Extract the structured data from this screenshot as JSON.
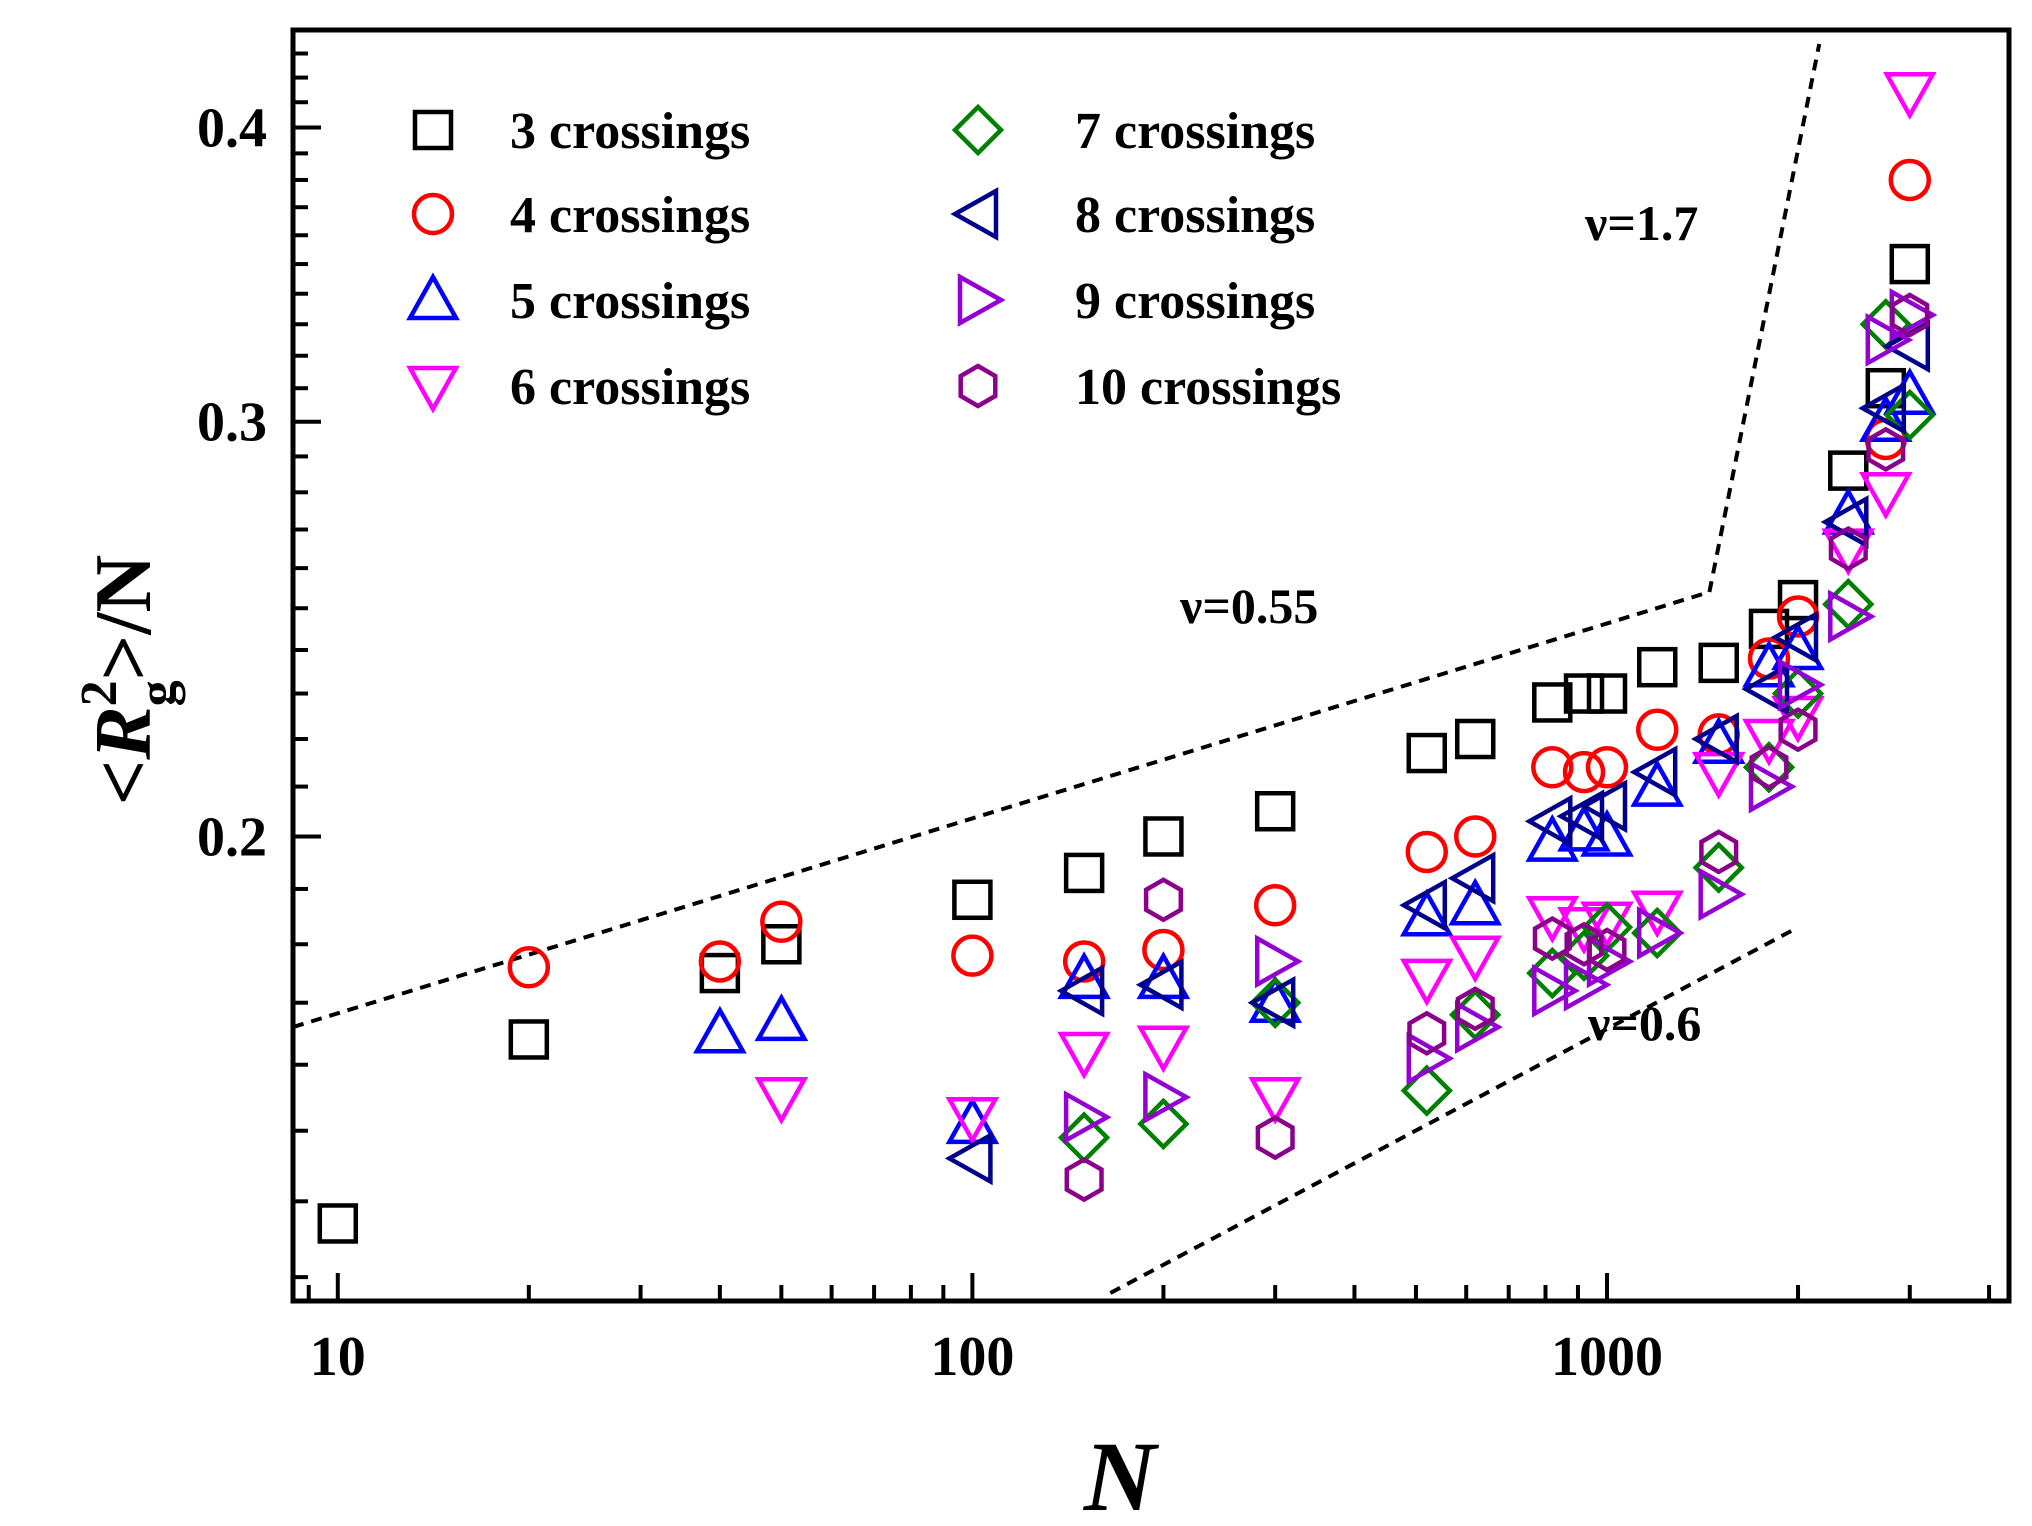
{
  "chart_data": {
    "type": "scatter",
    "title": "",
    "xlabel": "N",
    "ylabel": "<R_g^2>/N",
    "ylabel_parts": {
      "open": "<",
      "base": "R",
      "sup": "2",
      "sub": "g",
      "close": ">/N"
    },
    "xscale": "log",
    "yscale": "log",
    "xlim": [
      8.5,
      4300
    ],
    "ylim": [
      0.127,
      0.44
    ],
    "xticks": [
      10,
      100,
      1000
    ],
    "xtick_labels": [
      "10",
      "100",
      "1000"
    ],
    "yticks": [
      0.2,
      0.3,
      0.4
    ],
    "ytick_labels": [
      "0.2",
      "0.3",
      "0.4"
    ],
    "grid": false,
    "legend_position": "top-left",
    "series": [
      {
        "name": "3 crossings",
        "marker": "square",
        "color": "#000000",
        "x": [
          10,
          20,
          40,
          50,
          100,
          150,
          200,
          300,
          520,
          620,
          820,
          920,
          1000,
          1200,
          1500,
          1800,
          2000,
          2400,
          2750,
          3000
        ],
        "y": [
          0.137,
          0.164,
          0.175,
          0.18,
          0.188,
          0.193,
          0.2,
          0.205,
          0.217,
          0.22,
          0.228,
          0.23,
          0.23,
          0.236,
          0.237,
          0.245,
          0.252,
          0.286,
          0.31,
          0.35
        ]
      },
      {
        "name": "4 crossings",
        "marker": "circle",
        "color": "#ff0000",
        "x": [
          20,
          40,
          50,
          100,
          150,
          200,
          300,
          520,
          620,
          820,
          920,
          1000,
          1200,
          1500,
          1800,
          2000,
          2750,
          3000
        ],
        "y": [
          0.176,
          0.177,
          0.184,
          0.178,
          0.177,
          0.179,
          0.187,
          0.197,
          0.2,
          0.214,
          0.213,
          0.214,
          0.222,
          0.221,
          0.238,
          0.248,
          0.295,
          0.38
        ]
      },
      {
        "name": "5 crossings",
        "marker": "triangle-up",
        "color": "#0000ff",
        "x": [
          40,
          50,
          100,
          150,
          200,
          300,
          520,
          620,
          820,
          920,
          1000,
          1200,
          1500,
          1800,
          2000,
          2400,
          2750,
          3000
        ],
        "y": [
          0.165,
          0.167,
          0.151,
          0.174,
          0.174,
          0.17,
          0.185,
          0.187,
          0.199,
          0.201,
          0.2,
          0.21,
          0.219,
          0.236,
          0.24,
          0.274,
          0.3,
          0.308
        ]
      },
      {
        "name": "6 crossings",
        "marker": "triangle-down",
        "color": "#ff00ff",
        "x": [
          50,
          100,
          150,
          200,
          300,
          520,
          620,
          820,
          920,
          1000,
          1200,
          1500,
          1800,
          2000,
          2400,
          2750,
          3000
        ],
        "y": [
          0.155,
          0.152,
          0.162,
          0.163,
          0.155,
          0.174,
          0.178,
          0.185,
          0.183,
          0.184,
          0.186,
          0.213,
          0.22,
          0.225,
          0.265,
          0.28,
          0.414
        ]
      },
      {
        "name": "7 crossings",
        "marker": "diamond",
        "color": "#008000",
        "x": [
          150,
          200,
          300,
          520,
          620,
          820,
          920,
          1000,
          1200,
          1500,
          1800,
          2000,
          2400,
          2750,
          3000
        ],
        "y": [
          0.149,
          0.151,
          0.17,
          0.156,
          0.168,
          0.175,
          0.178,
          0.183,
          0.182,
          0.194,
          0.214,
          0.23,
          0.251,
          0.33,
          0.302
        ]
      },
      {
        "name": "8 crossings",
        "marker": "triangle-left",
        "color": "#00008b",
        "x": [
          100,
          150,
          200,
          300,
          520,
          620,
          820,
          920,
          1000,
          1200,
          1500,
          1800,
          2000,
          2400,
          2750,
          3000
        ],
        "y": [
          0.146,
          0.172,
          0.173,
          0.17,
          0.187,
          0.192,
          0.203,
          0.204,
          0.206,
          0.213,
          0.22,
          0.231,
          0.243,
          0.272,
          0.304,
          0.323
        ]
      },
      {
        "name": "9 crossings",
        "marker": "triangle-right",
        "color": "#9400d3",
        "x": [
          150,
          200,
          300,
          520,
          620,
          820,
          920,
          1000,
          1200,
          1500,
          1800,
          2000,
          2400,
          2750,
          3000
        ],
        "y": [
          0.152,
          0.155,
          0.177,
          0.161,
          0.166,
          0.172,
          0.173,
          0.177,
          0.182,
          0.189,
          0.21,
          0.232,
          0.248,
          0.325,
          0.333
        ]
      },
      {
        "name": "10 crossings",
        "marker": "hexagon",
        "color": "#8b008b",
        "x": [
          150,
          200,
          300,
          520,
          620,
          820,
          920,
          1000,
          1500,
          1800,
          2000,
          2400,
          2750,
          3000
        ],
        "y": [
          0.143,
          0.188,
          0.149,
          0.165,
          0.169,
          0.181,
          0.18,
          0.179,
          0.197,
          0.214,
          0.222,
          0.265,
          0.292,
          0.333
        ]
      }
    ],
    "reference_lines": [
      {
        "label": "ν=0.55",
        "style": "dashed",
        "x": [
          8.5,
          1450
        ],
        "y": [
          0.166,
          0.254
        ]
      },
      {
        "label": "ν=1.7",
        "style": "dashed",
        "x": [
          1450,
          2160
        ],
        "y": [
          0.254,
          0.434
        ]
      },
      {
        "label": "ν=0.6",
        "style": "dashed",
        "x": [
          165,
          2000
        ],
        "y": [
          0.128,
          0.183
        ]
      }
    ],
    "annotations": [
      "ν=0.55",
      "ν=1.7",
      "ν=0.6"
    ]
  }
}
